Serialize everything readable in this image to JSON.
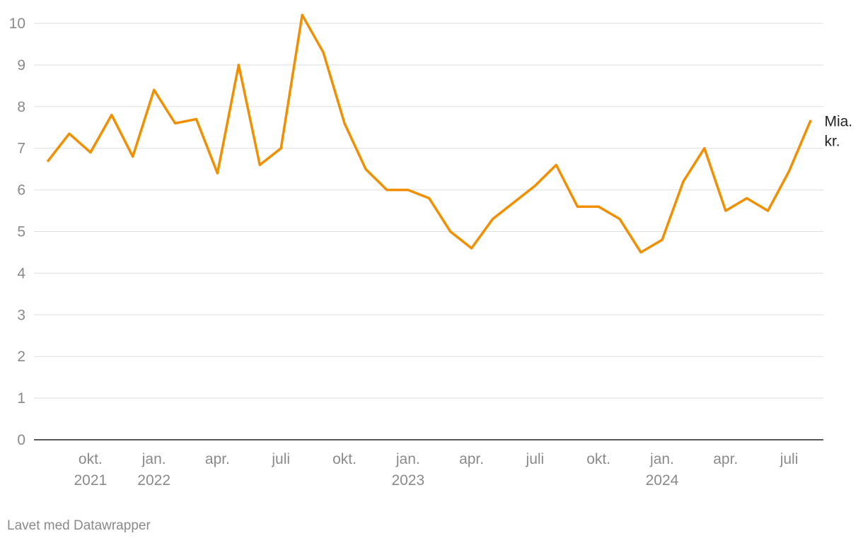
{
  "chart_data": {
    "type": "line",
    "ylim": [
      0,
      10.3
    ],
    "yticks": [
      0,
      1,
      2,
      3,
      4,
      5,
      6,
      7,
      8,
      9,
      10
    ],
    "x_ticks": [
      {
        "date": "2021-10",
        "line1": "okt.",
        "line2": "2021"
      },
      {
        "date": "2022-01",
        "line1": "jan.",
        "line2": "2022"
      },
      {
        "date": "2022-04",
        "line1": "apr.",
        "line2": ""
      },
      {
        "date": "2022-07",
        "line1": "juli",
        "line2": ""
      },
      {
        "date": "2022-10",
        "line1": "okt.",
        "line2": ""
      },
      {
        "date": "2023-01",
        "line1": "jan.",
        "line2": "2023"
      },
      {
        "date": "2023-04",
        "line1": "apr.",
        "line2": ""
      },
      {
        "date": "2023-07",
        "line1": "juli",
        "line2": ""
      },
      {
        "date": "2023-10",
        "line1": "okt.",
        "line2": ""
      },
      {
        "date": "2024-01",
        "line1": "jan.",
        "line2": "2024"
      },
      {
        "date": "2024-04",
        "line1": "apr.",
        "line2": ""
      },
      {
        "date": "2024-07",
        "line1": "juli",
        "line2": ""
      }
    ],
    "series": [
      {
        "name": "Mia. kr.",
        "name_lines": [
          "Mia.",
          "kr."
        ],
        "color": "#f18f01",
        "points": [
          {
            "x": "2021-08",
            "y": 6.7
          },
          {
            "x": "2021-09",
            "y": 7.35
          },
          {
            "x": "2021-10",
            "y": 6.9
          },
          {
            "x": "2021-11",
            "y": 7.8
          },
          {
            "x": "2021-12",
            "y": 6.8
          },
          {
            "x": "2022-01",
            "y": 8.4
          },
          {
            "x": "2022-02",
            "y": 7.6
          },
          {
            "x": "2022-03",
            "y": 7.7
          },
          {
            "x": "2022-04",
            "y": 6.4
          },
          {
            "x": "2022-05",
            "y": 9.0
          },
          {
            "x": "2022-06",
            "y": 6.6
          },
          {
            "x": "2022-07",
            "y": 7.0
          },
          {
            "x": "2022-08",
            "y": 10.2
          },
          {
            "x": "2022-09",
            "y": 9.3
          },
          {
            "x": "2022-10",
            "y": 7.6
          },
          {
            "x": "2022-11",
            "y": 6.5
          },
          {
            "x": "2022-12",
            "y": 6.0
          },
          {
            "x": "2023-01",
            "y": 6.0
          },
          {
            "x": "2023-02",
            "y": 5.8
          },
          {
            "x": "2023-03",
            "y": 5.0
          },
          {
            "x": "2023-04",
            "y": 4.6
          },
          {
            "x": "2023-05",
            "y": 5.3
          },
          {
            "x": "2023-06",
            "y": 5.7
          },
          {
            "x": "2023-07",
            "y": 6.1
          },
          {
            "x": "2023-08",
            "y": 6.6
          },
          {
            "x": "2023-09",
            "y": 5.6
          },
          {
            "x": "2023-10",
            "y": 5.6
          },
          {
            "x": "2023-11",
            "y": 5.3
          },
          {
            "x": "2023-12",
            "y": 4.5
          },
          {
            "x": "2024-01",
            "y": 4.8
          },
          {
            "x": "2024-02",
            "y": 6.2
          },
          {
            "x": "2024-03",
            "y": 7.0
          },
          {
            "x": "2024-04",
            "y": 5.5
          },
          {
            "x": "2024-05",
            "y": 5.8
          },
          {
            "x": "2024-06",
            "y": 5.5
          },
          {
            "x": "2024-07",
            "y": 6.45
          },
          {
            "x": "2024-08",
            "y": 7.65
          }
        ]
      }
    ],
    "grid": true
  },
  "footer": {
    "credit": "Lavet med Datawrapper"
  }
}
